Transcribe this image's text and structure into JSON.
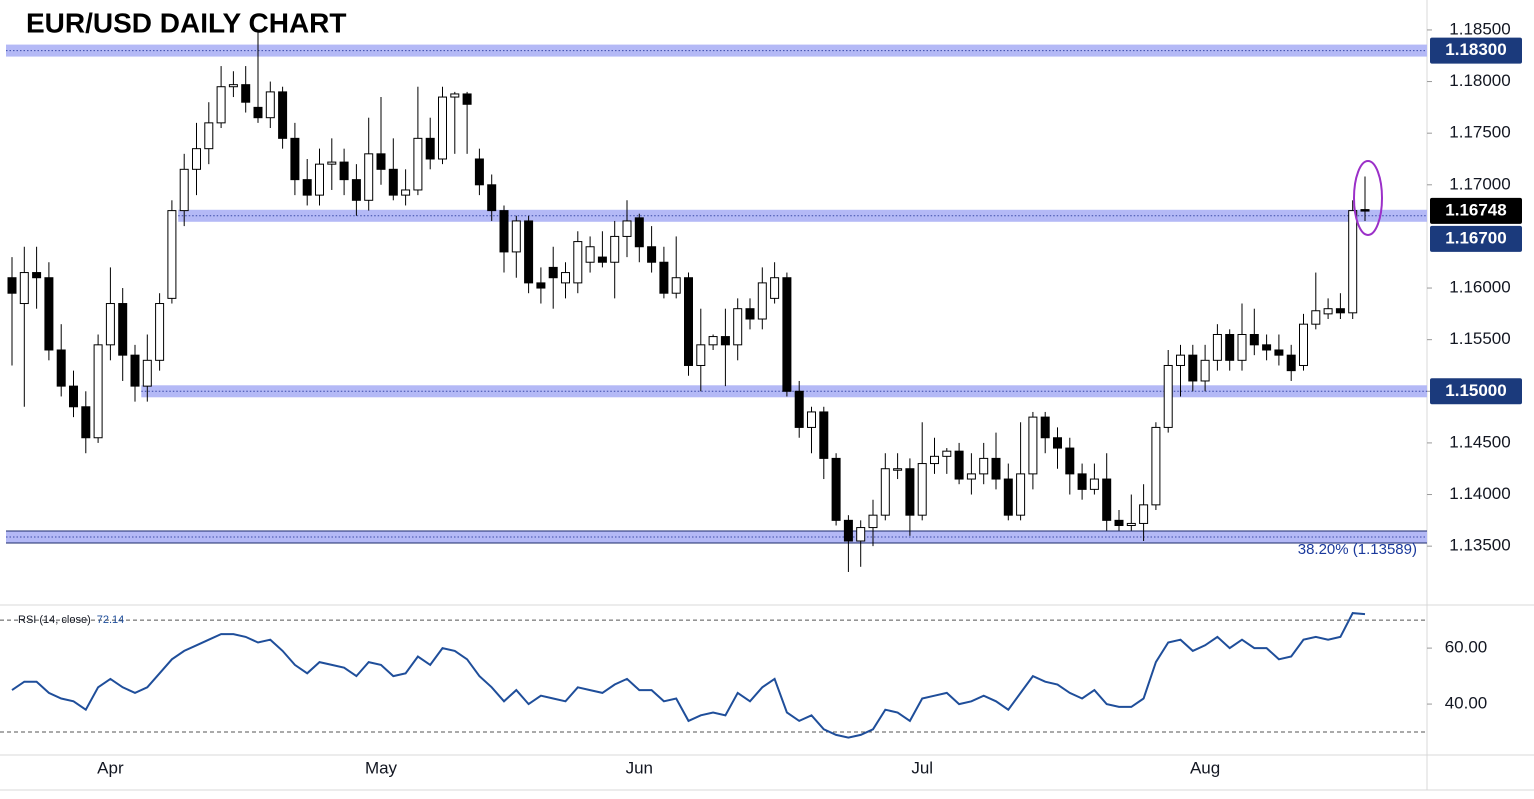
{
  "chart_data": {
    "type": "candlestick",
    "title": "EUR/USD DAILY CHART",
    "categories": [
      null,
      null,
      null,
      null,
      null,
      null,
      null,
      null,
      "Apr",
      null,
      null,
      null,
      null,
      null,
      null,
      null,
      null,
      null,
      null,
      null,
      null,
      null,
      null,
      null,
      null,
      null,
      null,
      null,
      null,
      null,
      "May",
      null,
      null,
      null,
      null,
      null,
      null,
      null,
      null,
      null,
      null,
      null,
      null,
      null,
      null,
      null,
      null,
      null,
      null,
      null,
      null,
      "Jun",
      null,
      null,
      null,
      null,
      null,
      null,
      null,
      null,
      null,
      null,
      null,
      null,
      null,
      null,
      null,
      null,
      null,
      null,
      null,
      null,
      null,
      null,
      "Jul",
      null,
      null,
      null,
      null,
      null,
      null,
      null,
      null,
      null,
      null,
      null,
      null,
      null,
      null,
      null,
      null,
      null,
      null,
      null,
      null,
      null,
      null,
      "Aug",
      null,
      null,
      null,
      null,
      null,
      null,
      null,
      null,
      null,
      null,
      null,
      null,
      null
    ],
    "ohlc": [
      [
        1.161,
        1.163,
        1.1525,
        1.1595
      ],
      [
        1.1585,
        1.164,
        1.1485,
        1.1615
      ],
      [
        1.1615,
        1.164,
        1.158,
        1.161
      ],
      [
        1.161,
        1.1625,
        1.153,
        1.154
      ],
      [
        1.154,
        1.1565,
        1.1495,
        1.1505
      ],
      [
        1.1505,
        1.152,
        1.1475,
        1.1485
      ],
      [
        1.1485,
        1.15,
        1.144,
        1.1455
      ],
      [
        1.1455,
        1.1555,
        1.145,
        1.1545
      ],
      [
        1.1545,
        1.162,
        1.153,
        1.1585
      ],
      [
        1.1585,
        1.16,
        1.151,
        1.1535
      ],
      [
        1.1535,
        1.1545,
        1.149,
        1.1505
      ],
      [
        1.1505,
        1.1555,
        1.149,
        1.153
      ],
      [
        1.153,
        1.1595,
        1.152,
        1.1585
      ],
      [
        1.159,
        1.1685,
        1.1585,
        1.1675
      ],
      [
        1.1675,
        1.173,
        1.166,
        1.1715
      ],
      [
        1.1715,
        1.176,
        1.169,
        1.1735
      ],
      [
        1.1735,
        1.178,
        1.172,
        1.176
      ],
      [
        1.176,
        1.1815,
        1.1755,
        1.1795
      ],
      [
        1.1795,
        1.181,
        1.1785,
        1.1797
      ],
      [
        1.1797,
        1.1815,
        1.177,
        1.178
      ],
      [
        1.1775,
        1.185,
        1.176,
        1.1765
      ],
      [
        1.1765,
        1.18,
        1.1755,
        1.179
      ],
      [
        1.179,
        1.1795,
        1.1735,
        1.1745
      ],
      [
        1.1745,
        1.176,
        1.169,
        1.1705
      ],
      [
        1.1705,
        1.1725,
        1.168,
        1.169
      ],
      [
        1.169,
        1.1735,
        1.168,
        1.172
      ],
      [
        1.172,
        1.1745,
        1.1695,
        1.1722
      ],
      [
        1.1722,
        1.1735,
        1.169,
        1.1705
      ],
      [
        1.1705,
        1.172,
        1.167,
        1.1685
      ],
      [
        1.1685,
        1.1765,
        1.1675,
        1.173
      ],
      [
        1.173,
        1.1785,
        1.17,
        1.1715
      ],
      [
        1.1715,
        1.1745,
        1.1685,
        1.169
      ],
      [
        1.169,
        1.1715,
        1.168,
        1.1695
      ],
      [
        1.1695,
        1.1795,
        1.169,
        1.1745
      ],
      [
        1.1745,
        1.1765,
        1.1715,
        1.1725
      ],
      [
        1.1725,
        1.1795,
        1.172,
        1.1785
      ],
      [
        1.1785,
        1.179,
        1.173,
        1.1788
      ],
      [
        1.1788,
        1.179,
        1.173,
        1.1778
      ],
      [
        1.1725,
        1.1735,
        1.169,
        1.17
      ],
      [
        1.17,
        1.171,
        1.1665,
        1.1675
      ],
      [
        1.1675,
        1.168,
        1.1615,
        1.1635
      ],
      [
        1.1635,
        1.167,
        1.161,
        1.1665
      ],
      [
        1.1665,
        1.167,
        1.1595,
        1.1605
      ],
      [
        1.1605,
        1.162,
        1.1585,
        1.16
      ],
      [
        1.162,
        1.164,
        1.158,
        1.161
      ],
      [
        1.1605,
        1.1625,
        1.159,
        1.1615
      ],
      [
        1.1605,
        1.1655,
        1.1595,
        1.1645
      ],
      [
        1.1625,
        1.165,
        1.1615,
        1.164
      ],
      [
        1.163,
        1.1655,
        1.162,
        1.1625
      ],
      [
        1.1625,
        1.1665,
        1.159,
        1.165
      ],
      [
        1.165,
        1.1685,
        1.163,
        1.1665
      ],
      [
        1.1668,
        1.1672,
        1.1625,
        1.164
      ],
      [
        1.164,
        1.166,
        1.1615,
        1.1625
      ],
      [
        1.1625,
        1.164,
        1.159,
        1.1595
      ],
      [
        1.1595,
        1.165,
        1.159,
        1.161
      ],
      [
        1.161,
        1.1615,
        1.1515,
        1.1525
      ],
      [
        1.1525,
        1.158,
        1.15,
        1.1545
      ],
      [
        1.1545,
        1.1555,
        1.154,
        1.1553
      ],
      [
        1.1553,
        1.158,
        1.1505,
        1.1545
      ],
      [
        1.1545,
        1.159,
        1.153,
        1.158
      ],
      [
        1.158,
        1.159,
        1.156,
        1.157
      ],
      [
        1.157,
        1.162,
        1.156,
        1.1605
      ],
      [
        1.159,
        1.1625,
        1.1585,
        1.161
      ],
      [
        1.161,
        1.1615,
        1.1495,
        1.15
      ],
      [
        1.15,
        1.151,
        1.1455,
        1.1465
      ],
      [
        1.1465,
        1.1485,
        1.144,
        1.148
      ],
      [
        1.148,
        1.1485,
        1.1415,
        1.1435
      ],
      [
        1.1435,
        1.144,
        1.137,
        1.1375
      ],
      [
        1.1375,
        1.138,
        1.1325,
        1.1355
      ],
      [
        1.1355,
        1.1375,
        1.133,
        1.1368
      ],
      [
        1.1368,
        1.1395,
        1.135,
        1.138
      ],
      [
        1.138,
        1.144,
        1.1375,
        1.1425
      ],
      [
        1.1425,
        1.144,
        1.1415,
        1.1425
      ],
      [
        1.1425,
        1.1435,
        1.136,
        1.138
      ],
      [
        1.138,
        1.147,
        1.1375,
        1.143
      ],
      [
        1.143,
        1.1455,
        1.142,
        1.1437
      ],
      [
        1.1437,
        1.1445,
        1.142,
        1.1442
      ],
      [
        1.1442,
        1.145,
        1.141,
        1.1415
      ],
      [
        1.1415,
        1.144,
        1.14,
        1.142
      ],
      [
        1.142,
        1.145,
        1.141,
        1.1435
      ],
      [
        1.1435,
        1.146,
        1.1405,
        1.1415
      ],
      [
        1.1415,
        1.143,
        1.1375,
        1.138
      ],
      [
        1.138,
        1.147,
        1.1375,
        1.142
      ],
      [
        1.142,
        1.148,
        1.1405,
        1.1475
      ],
      [
        1.1475,
        1.148,
        1.144,
        1.1455
      ],
      [
        1.1455,
        1.1465,
        1.1425,
        1.1445
      ],
      [
        1.1445,
        1.1455,
        1.14,
        1.142
      ],
      [
        1.142,
        1.143,
        1.1395,
        1.1405
      ],
      [
        1.1405,
        1.143,
        1.14,
        1.1415
      ],
      [
        1.1415,
        1.144,
        1.1365,
        1.1375
      ],
      [
        1.1375,
        1.1385,
        1.1365,
        1.137
      ],
      [
        1.137,
        1.14,
        1.1365,
        1.1372
      ],
      [
        1.1372,
        1.141,
        1.1355,
        1.139
      ],
      [
        1.139,
        1.147,
        1.1385,
        1.1465
      ],
      [
        1.1465,
        1.154,
        1.146,
        1.1525
      ],
      [
        1.1525,
        1.1545,
        1.1495,
        1.1535
      ],
      [
        1.1535,
        1.1545,
        1.15,
        1.151
      ],
      [
        1.151,
        1.1545,
        1.15,
        1.153
      ],
      [
        1.153,
        1.1565,
        1.152,
        1.1555
      ],
      [
        1.1555,
        1.156,
        1.152,
        1.153
      ],
      [
        1.153,
        1.1585,
        1.152,
        1.1555
      ],
      [
        1.1555,
        1.158,
        1.1535,
        1.1545
      ],
      [
        1.1545,
        1.1555,
        1.153,
        1.154
      ],
      [
        1.154,
        1.1555,
        1.1525,
        1.1535
      ],
      [
        1.1535,
        1.1545,
        1.151,
        1.152
      ],
      [
        1.1525,
        1.1575,
        1.152,
        1.1565
      ],
      [
        1.1565,
        1.1615,
        1.156,
        1.1578
      ],
      [
        1.1575,
        1.159,
        1.157,
        1.158
      ],
      [
        1.158,
        1.1595,
        1.157,
        1.1576
      ],
      [
        1.1576,
        1.1685,
        1.157,
        1.1675
      ],
      [
        1.1676,
        1.1708,
        1.1665,
        1.16748
      ]
    ],
    "up_color": "#ffffff",
    "down_color": "#000000",
    "ylim": [
      1.1293,
      1.1879
    ],
    "yticks": [
      {
        "value": 1.185,
        "label": "1.18500"
      },
      {
        "value": 1.18,
        "label": "1.18000"
      },
      {
        "value": 1.175,
        "label": "1.17500"
      },
      {
        "value": 1.17,
        "label": "1.17000"
      },
      {
        "value": 1.16,
        "label": "1.16000"
      },
      {
        "value": 1.155,
        "label": "1.15500"
      },
      {
        "value": 1.15,
        "label": "1.15000"
      },
      {
        "value": 1.145,
        "label": "1.14500"
      },
      {
        "value": 1.14,
        "label": "1.14000"
      },
      {
        "value": 1.135,
        "label": "1.13500"
      }
    ],
    "levels": [
      {
        "value": 1.183,
        "label": "1.18300",
        "from": 0,
        "tag": true
      },
      {
        "value": 1.167,
        "label": "1.16700",
        "from": 14,
        "tag": true
      },
      {
        "value": 1.15,
        "label": "1.15000",
        "from": 11,
        "tag": true
      },
      {
        "value": 1.13589,
        "label": "38.20% (1.13589)",
        "from": 0,
        "tag": false
      }
    ],
    "level_color": "#b4b9f6",
    "rsi": {
      "label": "RSI (14, close)",
      "color": "#1f4e9a",
      "ylim": [
        21.8,
        75.4
      ],
      "yticks": [
        {
          "value": 60,
          "label": "60.00"
        },
        {
          "value": 40,
          "label": "40.00"
        }
      ],
      "bands": [
        30,
        70
      ],
      "values": [
        45,
        48,
        48,
        44,
        42,
        41,
        38,
        46,
        49,
        46,
        44,
        46,
        51,
        56,
        59,
        61,
        63,
        65,
        65,
        64,
        62,
        63,
        59,
        54,
        51,
        55,
        54,
        53,
        50,
        55,
        54,
        50,
        51,
        57,
        54,
        60,
        59,
        56,
        50,
        46,
        41,
        45,
        40,
        43,
        42,
        41,
        46,
        45,
        44,
        47,
        49,
        45,
        45,
        41,
        42,
        34,
        36,
        37,
        36,
        44,
        41,
        46,
        49,
        37,
        34,
        36,
        31,
        29,
        28,
        29,
        31,
        38,
        37,
        34,
        42,
        43,
        44,
        40,
        41,
        43,
        41,
        38,
        44,
        50,
        48,
        47,
        44,
        42,
        45,
        40,
        39,
        39,
        42,
        55,
        62,
        63,
        59,
        61,
        64,
        60,
        63,
        60,
        60,
        56,
        57,
        63,
        64,
        63,
        64,
        72.5,
        72.14
      ]
    }
  }
}
